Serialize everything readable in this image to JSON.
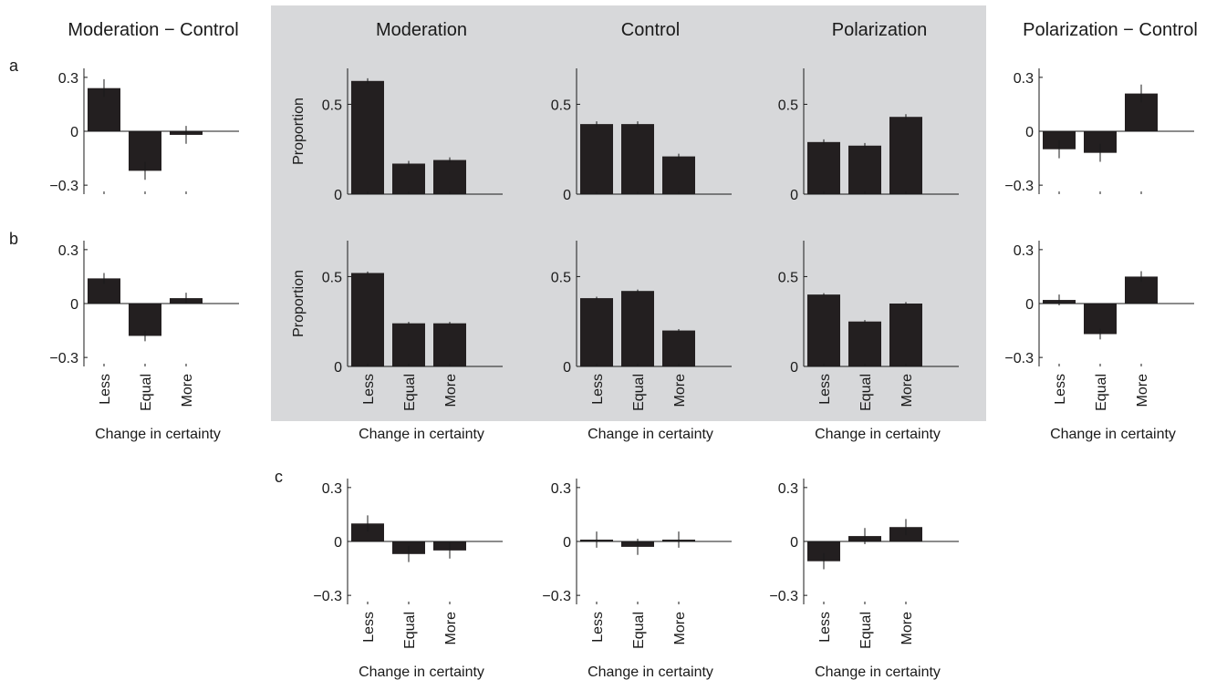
{
  "colors": {
    "bar": "#231f20",
    "background_panel": "#d7d8da",
    "axis": "#1a1a1a"
  },
  "column_headers": [
    "Moderation − Control",
    "Moderation",
    "Control",
    "Polarization",
    "Polarization − Control"
  ],
  "row_labels": [
    "a",
    "b",
    "c"
  ],
  "chart_data": [
    {
      "id": "a1",
      "type": "bar",
      "title": "Moderation − Control",
      "categories": [
        "Less",
        "Equal",
        "More"
      ],
      "values": [
        0.24,
        -0.22,
        -0.02
      ],
      "errors": [
        0.05,
        0.05,
        0.05
      ],
      "ylim": [
        -0.35,
        0.35
      ],
      "yticks": [
        0.3,
        0,
        -0.3
      ],
      "ytick_labels": [
        "0.3",
        "0",
        "−0.3"
      ],
      "ylabel": "",
      "xlabel": ""
    },
    {
      "id": "a2",
      "type": "bar",
      "title": "Moderation",
      "categories": [
        "Less",
        "Equal",
        "More"
      ],
      "values": [
        0.63,
        0.17,
        0.19
      ],
      "errors": [
        0.015,
        0.015,
        0.015
      ],
      "ylim": [
        0,
        0.7
      ],
      "yticks": [
        0.5,
        0
      ],
      "ytick_labels": [
        "0.5",
        "0"
      ],
      "ylabel": "Proportion",
      "xlabel": ""
    },
    {
      "id": "a3",
      "type": "bar",
      "title": "Control",
      "categories": [
        "Less",
        "Equal",
        "More"
      ],
      "values": [
        0.39,
        0.39,
        0.21
      ],
      "errors": [
        0.015,
        0.015,
        0.015
      ],
      "ylim": [
        0,
        0.7
      ],
      "yticks": [
        0.5,
        0
      ],
      "ytick_labels": [
        "0.5",
        "0"
      ],
      "ylabel": "",
      "xlabel": ""
    },
    {
      "id": "a4",
      "type": "bar",
      "title": "Polarization",
      "categories": [
        "Less",
        "Equal",
        "More"
      ],
      "values": [
        0.29,
        0.27,
        0.43
      ],
      "errors": [
        0.015,
        0.015,
        0.015
      ],
      "ylim": [
        0,
        0.7
      ],
      "yticks": [
        0.5,
        0
      ],
      "ytick_labels": [
        "0.5",
        "0"
      ],
      "ylabel": "",
      "xlabel": ""
    },
    {
      "id": "a5",
      "type": "bar",
      "title": "Polarization − Control",
      "categories": [
        "Less",
        "Equal",
        "More"
      ],
      "values": [
        -0.1,
        -0.12,
        0.21
      ],
      "errors": [
        0.05,
        0.05,
        0.05
      ],
      "ylim": [
        -0.35,
        0.35
      ],
      "yticks": [
        0.3,
        0,
        -0.3
      ],
      "ytick_labels": [
        "0.3",
        "0",
        "−0.3"
      ],
      "ylabel": "",
      "xlabel": ""
    },
    {
      "id": "b1",
      "type": "bar",
      "title": "",
      "categories": [
        "Less",
        "Equal",
        "More"
      ],
      "values": [
        0.14,
        -0.18,
        0.03
      ],
      "errors": [
        0.03,
        0.03,
        0.03
      ],
      "ylim": [
        -0.35,
        0.35
      ],
      "yticks": [
        0.3,
        0,
        -0.3
      ],
      "ytick_labels": [
        "0.3",
        "0",
        "−0.3"
      ],
      "ylabel": "",
      "xlabel": "Change in certainty"
    },
    {
      "id": "b2",
      "type": "bar",
      "title": "",
      "categories": [
        "Less",
        "Equal",
        "More"
      ],
      "values": [
        0.52,
        0.24,
        0.24
      ],
      "errors": [
        0.008,
        0.008,
        0.008
      ],
      "ylim": [
        0,
        0.7
      ],
      "yticks": [
        0.5,
        0
      ],
      "ytick_labels": [
        "0.5",
        "0"
      ],
      "ylabel": "Proportion",
      "xlabel": "Change in certainty"
    },
    {
      "id": "b3",
      "type": "bar",
      "title": "",
      "categories": [
        "Less",
        "Equal",
        "More"
      ],
      "values": [
        0.38,
        0.42,
        0.2
      ],
      "errors": [
        0.008,
        0.008,
        0.008
      ],
      "ylim": [
        0,
        0.7
      ],
      "yticks": [
        0.5,
        0
      ],
      "ytick_labels": [
        "0.5",
        "0"
      ],
      "ylabel": "",
      "xlabel": "Change in certainty"
    },
    {
      "id": "b4",
      "type": "bar",
      "title": "",
      "categories": [
        "Less",
        "Equal",
        "More"
      ],
      "values": [
        0.4,
        0.25,
        0.35
      ],
      "errors": [
        0.008,
        0.008,
        0.008
      ],
      "ylim": [
        0,
        0.7
      ],
      "yticks": [
        0.5,
        0
      ],
      "ytick_labels": [
        "0.5",
        "0"
      ],
      "ylabel": "",
      "xlabel": "Change in certainty"
    },
    {
      "id": "b5",
      "type": "bar",
      "title": "",
      "categories": [
        "Less",
        "Equal",
        "More"
      ],
      "values": [
        0.02,
        -0.17,
        0.15
      ],
      "errors": [
        0.03,
        0.03,
        0.03
      ],
      "ylim": [
        -0.35,
        0.35
      ],
      "yticks": [
        0.3,
        0,
        -0.3
      ],
      "ytick_labels": [
        "0.3",
        "0",
        "−0.3"
      ],
      "ylabel": "",
      "xlabel": "Change in certainty"
    },
    {
      "id": "c1",
      "type": "bar",
      "title": "",
      "categories": [
        "Less",
        "Equal",
        "More"
      ],
      "values": [
        0.1,
        -0.07,
        -0.05
      ],
      "errors": [
        0.045,
        0.045,
        0.045
      ],
      "ylim": [
        -0.35,
        0.35
      ],
      "yticks": [
        0.3,
        0,
        -0.3
      ],
      "ytick_labels": [
        "0.3",
        "0",
        "−0.3"
      ],
      "ylabel": "",
      "xlabel": "Change in certainty"
    },
    {
      "id": "c2",
      "type": "bar",
      "title": "",
      "categories": [
        "Less",
        "Equal",
        "More"
      ],
      "values": [
        0.01,
        -0.03,
        0.01
      ],
      "errors": [
        0.045,
        0.045,
        0.045
      ],
      "ylim": [
        -0.35,
        0.35
      ],
      "yticks": [
        0.3,
        0,
        -0.3
      ],
      "ytick_labels": [
        "0.3",
        "0",
        "−0.3"
      ],
      "ylabel": "",
      "xlabel": "Change in certainty"
    },
    {
      "id": "c3",
      "type": "bar",
      "title": "",
      "categories": [
        "Less",
        "Equal",
        "More"
      ],
      "values": [
        -0.11,
        0.03,
        0.08
      ],
      "errors": [
        0.045,
        0.045,
        0.045
      ],
      "ylim": [
        -0.35,
        0.35
      ],
      "yticks": [
        0.3,
        0,
        -0.3
      ],
      "ytick_labels": [
        "0.3",
        "0",
        "−0.3"
      ],
      "ylabel": "",
      "xlabel": "Change in certainty"
    }
  ]
}
